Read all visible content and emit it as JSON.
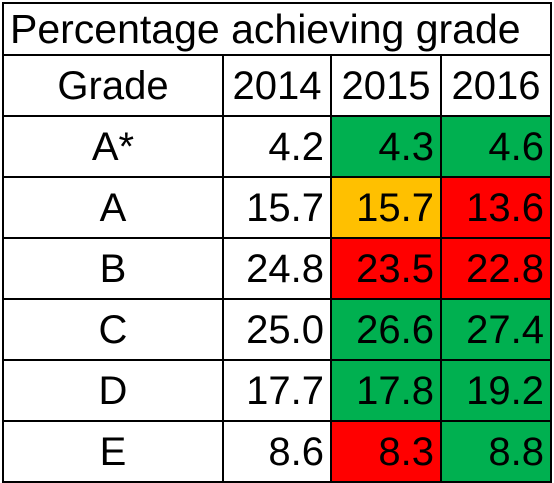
{
  "title": "Percentage achieving grade",
  "header": {
    "grade_label": "Grade",
    "years": [
      "2014",
      "2015",
      "2016"
    ]
  },
  "colors": {
    "green": "#00b050",
    "amber": "#ffc000",
    "red": "#ff0000",
    "none": "#ffffff"
  },
  "rows": [
    {
      "grade": "A*",
      "values": [
        "4.2",
        "4.3",
        "4.6"
      ],
      "status": [
        "none",
        "green",
        "green"
      ]
    },
    {
      "grade": "A",
      "values": [
        "15.7",
        "15.7",
        "13.6"
      ],
      "status": [
        "none",
        "amber",
        "red"
      ]
    },
    {
      "grade": "B",
      "values": [
        "24.8",
        "23.5",
        "22.8"
      ],
      "status": [
        "none",
        "red",
        "red"
      ]
    },
    {
      "grade": "C",
      "values": [
        "25.0",
        "26.6",
        "27.4"
      ],
      "status": [
        "none",
        "green",
        "green"
      ]
    },
    {
      "grade": "D",
      "values": [
        "17.7",
        "17.8",
        "19.2"
      ],
      "status": [
        "none",
        "green",
        "green"
      ]
    },
    {
      "grade": "E",
      "values": [
        "8.6",
        "8.3",
        "8.8"
      ],
      "status": [
        "none",
        "red",
        "green"
      ]
    }
  ]
}
